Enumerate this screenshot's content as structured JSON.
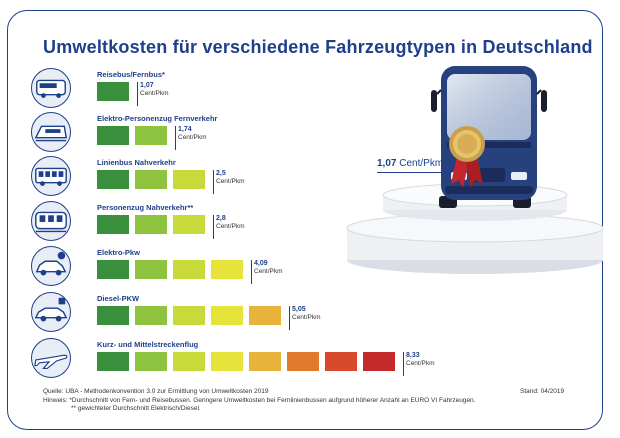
{
  "title": "Umweltkosten für verschiedene Fahrzeugtypen in Deutschland",
  "highlight": {
    "value": "1,07",
    "unit": "Cent/Pkm",
    "icon": "bus-front-medal-icon"
  },
  "chart_data": {
    "type": "bar",
    "title": "Umweltkosten für verschiedene Fahrzeugtypen in Deutschland",
    "unit": "Cent/Pkm",
    "ylabel": "Cent/Pkm",
    "scale_colors": [
      "#3a8f3c",
      "#8ec33f",
      "#c8d93a",
      "#e6e43a",
      "#e8b33a",
      "#e07a2a",
      "#d84a2a",
      "#c42a2a",
      "#a81e22"
    ],
    "categories": [
      "Reisebus/Fernbus*",
      "Elektro-Personenzug Fernverkehr",
      "Linienbus Nahverkehr",
      "Personenzug Nahverkehr**",
      "Elektro-Pkw",
      "Diesel-PKW",
      "Kurz- und Mittelstreckenflug"
    ],
    "values": [
      1.07,
      1.74,
      2.5,
      2.8,
      4.09,
      5.05,
      8.33
    ],
    "value_labels": [
      "1,07",
      "1,74",
      "2,5",
      "2,8",
      "4,09",
      "5,05",
      "8,33"
    ],
    "icons": [
      "bus-icon",
      "train-icon",
      "city-bus-icon",
      "regional-train-icon",
      "electric-car-icon",
      "diesel-car-icon",
      "airplane-icon"
    ]
  },
  "footer": {
    "source": "Quelle: UBA - Methodenkonvention 3.0 zur Ermittlung von Umweltkosten 2019",
    "note1": "Hinweis: *Durchschnitt von Fern- und Reisebussen. Geringere Umweltkosten bei Fernlinienbussen aufgrund höherer Anzahl an EURO VI Fahrzeugen.",
    "note2": "** gewichteter Durchschnitt Elektrisch/Diesel.",
    "stand": "Stand: 04/2019"
  }
}
